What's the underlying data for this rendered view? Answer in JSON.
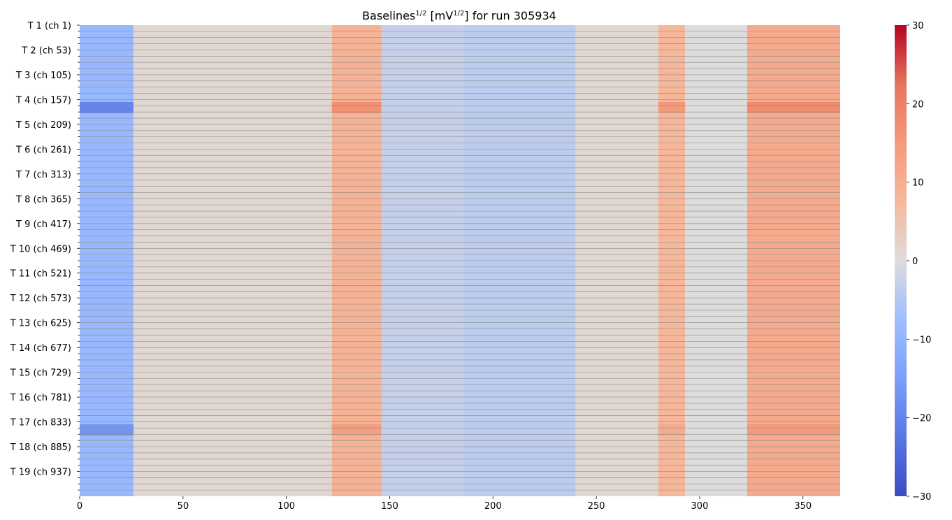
{
  "chart_data": {
    "type": "heatmap",
    "title": {
      "prefix": "Baselines",
      "sup1": "1/2",
      "middle": " [mV",
      "sup2": "1/2",
      "suffix": "] for run 305934"
    },
    "xlabel": "",
    "ylabel": "",
    "colormap": "coolwarm",
    "value_range": [
      -30,
      30
    ],
    "x_range": [
      0,
      368
    ],
    "x_ticks": [
      "0",
      "50",
      "100",
      "150",
      "200",
      "250",
      "300",
      "350"
    ],
    "x_tick_values": [
      0,
      50,
      100,
      150,
      200,
      250,
      300,
      350
    ],
    "channels": 988,
    "y_tick_labels": [
      "T 1 (ch 1)",
      "T 2 (ch 53)",
      "T 3 (ch 105)",
      "T 4 (ch 157)",
      "T 5 (ch 209)",
      "T 6 (ch 261)",
      "T 7 (ch 313)",
      "T 8 (ch 365)",
      "T 9 (ch 417)",
      "T 10 (ch 469)",
      "T 11 (ch 521)",
      "T 12 (ch 573)",
      "T 13 (ch 625)",
      "T 14 (ch 677)",
      "T 15 (ch 729)",
      "T 16 (ch 781)",
      "T 17 (ch 833)",
      "T 18 (ch 885)",
      "T 19 (ch 937)"
    ],
    "colorbar_ticks": [
      "30",
      "20",
      "10",
      "0",
      "−10",
      "−20",
      "−30"
    ],
    "colorbar_tick_values": [
      30,
      20,
      10,
      0,
      -10,
      -20,
      -30
    ],
    "column_bands": [
      {
        "x": [
          0,
          26
        ],
        "value": -9
      },
      {
        "x": [
          26,
          122
        ],
        "value": 1
      },
      {
        "x": [
          122,
          146
        ],
        "value": 9
      },
      {
        "x": [
          146,
          186
        ],
        "value": -3
      },
      {
        "x": [
          186,
          240
        ],
        "value": -4
      },
      {
        "x": [
          240,
          280
        ],
        "value": 1
      },
      {
        "x": [
          280,
          293
        ],
        "value": 8
      },
      {
        "x": [
          293,
          323
        ],
        "value": 0
      },
      {
        "x": [
          323,
          368
        ],
        "value": 11
      }
    ],
    "strong_row_groups": [
      {
        "tracker": "T 4",
        "rows_value": [
          {
            "x": [
              0,
              26
            ],
            "value": -20
          },
          {
            "x": [
              122,
              146
            ],
            "value": 17
          },
          {
            "x": [
              280,
              293
            ],
            "value": 15
          },
          {
            "x": [
              323,
              368
            ],
            "value": 18
          }
        ]
      },
      {
        "tracker": "T 17",
        "rows_value": [
          {
            "x": [
              0,
              26
            ],
            "value": -17
          },
          {
            "x": [
              122,
              146
            ],
            "value": 14
          },
          {
            "x": [
              280,
              293
            ],
            "value": 11
          },
          {
            "x": [
              323,
              368
            ],
            "value": 15
          }
        ]
      }
    ]
  }
}
